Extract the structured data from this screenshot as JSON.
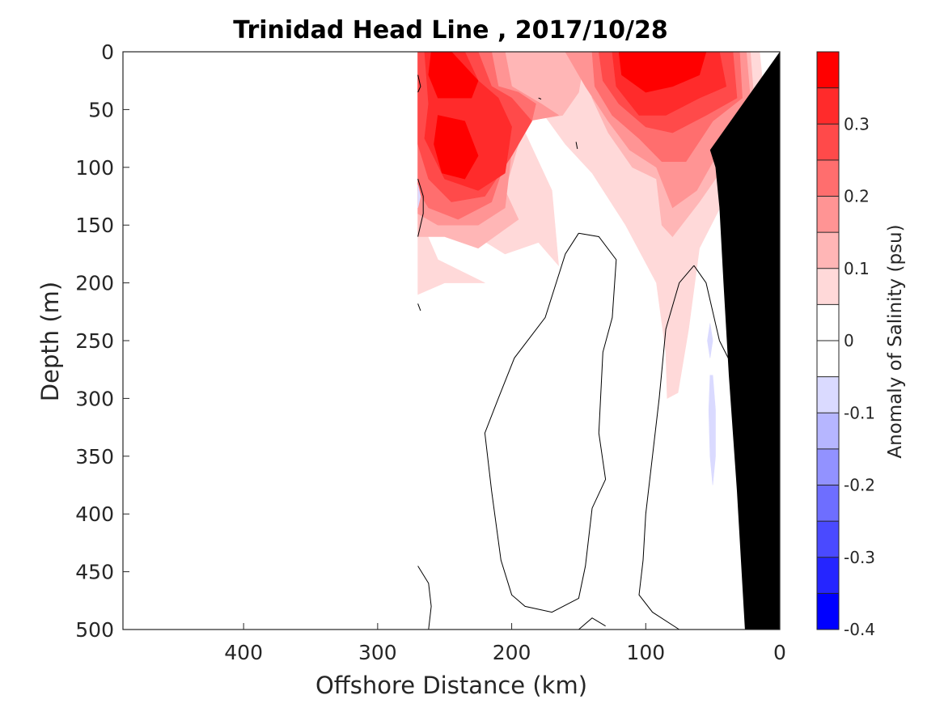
{
  "chart_data": {
    "type": "heatmap",
    "title": "Trinidad Head Line , 2017/10/28",
    "xlabel": "Offshore Distance (km)",
    "ylabel": "Depth (m)",
    "colorbar_label": "Anomaly of Salinity (psu)",
    "xlim": [
      490,
      0
    ],
    "ylim": [
      500,
      0
    ],
    "x_ticks": [
      {
        "value": 400,
        "label": "400"
      },
      {
        "value": 300,
        "label": "300"
      },
      {
        "value": 200,
        "label": "200"
      },
      {
        "value": 100,
        "label": "100"
      },
      {
        "value": 0,
        "label": "0"
      }
    ],
    "y_ticks": [
      {
        "value": 0,
        "label": "0"
      },
      {
        "value": 50,
        "label": "50"
      },
      {
        "value": 100,
        "label": "100"
      },
      {
        "value": 150,
        "label": "150"
      },
      {
        "value": 200,
        "label": "200"
      },
      {
        "value": 250,
        "label": "250"
      },
      {
        "value": 300,
        "label": "300"
      },
      {
        "value": 350,
        "label": "350"
      },
      {
        "value": 400,
        "label": "400"
      },
      {
        "value": 450,
        "label": "450"
      },
      {
        "value": 500,
        "label": "500"
      }
    ],
    "colorbar": {
      "min": -0.4,
      "max": 0.4,
      "ticks": [
        {
          "value": 0.3,
          "label": "0.3"
        },
        {
          "value": 0.2,
          "label": "0.2"
        },
        {
          "value": 0.1,
          "label": "0.1"
        },
        {
          "value": 0,
          "label": "0"
        },
        {
          "value": -0.1,
          "label": "-0.1"
        },
        {
          "value": -0.2,
          "label": "-0.2"
        },
        {
          "value": -0.3,
          "label": "-0.3"
        },
        {
          "value": -0.4,
          "label": "-0.4"
        }
      ],
      "levels": [
        {
          "from": 0.35,
          "to": 0.4,
          "color": "#ff0000"
        },
        {
          "from": 0.3,
          "to": 0.35,
          "color": "#ff2b2b"
        },
        {
          "from": 0.25,
          "to": 0.3,
          "color": "#ff4a4a"
        },
        {
          "from": 0.2,
          "to": 0.25,
          "color": "#ff6e6e"
        },
        {
          "from": 0.15,
          "to": 0.2,
          "color": "#ff9494"
        },
        {
          "from": 0.1,
          "to": 0.15,
          "color": "#ffb6b6"
        },
        {
          "from": 0.05,
          "to": 0.1,
          "color": "#ffd9d9"
        },
        {
          "from": 0.0,
          "to": 0.05,
          "color": "#ffffff"
        },
        {
          "from": -0.05,
          "to": 0.0,
          "color": "#ffffff"
        },
        {
          "from": -0.1,
          "to": -0.05,
          "color": "#dadaff"
        },
        {
          "from": -0.15,
          "to": -0.1,
          "color": "#b6b6ff"
        },
        {
          "from": -0.2,
          "to": -0.15,
          "color": "#9292ff"
        },
        {
          "from": -0.25,
          "to": -0.2,
          "color": "#6e6eff"
        },
        {
          "from": -0.3,
          "to": -0.25,
          "color": "#4a4aff"
        },
        {
          "from": -0.35,
          "to": -0.3,
          "color": "#2525ff"
        },
        {
          "from": -0.4,
          "to": -0.35,
          "color": "#0000ff"
        }
      ]
    },
    "filled_regions": [
      {
        "anomaly": 0.075,
        "color": "#ffd9d9",
        "points": [
          [
            270,
            0
          ],
          [
            15,
            0
          ],
          [
            10,
            60
          ],
          [
            38,
            120
          ],
          [
            60,
            170
          ],
          [
            68,
            240
          ],
          [
            76,
            295
          ],
          [
            84,
            300
          ],
          [
            85,
            260
          ],
          [
            92,
            200
          ],
          [
            115,
            150
          ],
          [
            140,
            105
          ],
          [
            160,
            80
          ],
          [
            185,
            40
          ],
          [
            210,
            10
          ],
          [
            230,
            35
          ],
          [
            255,
            60
          ],
          [
            270,
            80
          ]
        ]
      },
      {
        "anomaly": 0.075,
        "color": "#ffd9d9",
        "points": [
          [
            270,
            80
          ],
          [
            240,
            150
          ],
          [
            205,
            175
          ],
          [
            180,
            165
          ],
          [
            165,
            185
          ],
          [
            170,
            120
          ],
          [
            190,
            70
          ],
          [
            170,
            30
          ],
          [
            190,
            10
          ],
          [
            270,
            0
          ]
        ]
      },
      {
        "anomaly": 0.075,
        "color": "#ffd9d9",
        "points": [
          [
            270,
            140
          ],
          [
            255,
            180
          ],
          [
            220,
            200
          ],
          [
            250,
            200
          ],
          [
            270,
            210
          ]
        ]
      },
      {
        "anomaly": 0.125,
        "color": "#ffb6b6",
        "points": [
          [
            270,
            0
          ],
          [
            145,
            0
          ],
          [
            150,
            35
          ],
          [
            162,
            55
          ],
          [
            190,
            60
          ],
          [
            205,
            120
          ],
          [
            195,
            145
          ],
          [
            225,
            170
          ],
          [
            250,
            160
          ],
          [
            270,
            160
          ]
        ]
      },
      {
        "anomaly": 0.125,
        "color": "#ffb6b6",
        "points": [
          [
            145,
            0
          ],
          [
            22,
            0
          ],
          [
            18,
            60
          ],
          [
            42,
            100
          ],
          [
            60,
            130
          ],
          [
            80,
            160
          ],
          [
            88,
            150
          ],
          [
            92,
            110
          ],
          [
            110,
            100
          ],
          [
            128,
            70
          ],
          [
            140,
            40
          ]
        ]
      },
      {
        "anomaly": 0.175,
        "color": "#ff9494",
        "points": [
          [
            270,
            0
          ],
          [
            205,
            0
          ],
          [
            200,
            30
          ],
          [
            178,
            45
          ],
          [
            165,
            55
          ],
          [
            188,
            60
          ],
          [
            200,
            85
          ],
          [
            205,
            135
          ],
          [
            225,
            150
          ],
          [
            255,
            150
          ],
          [
            270,
            140
          ]
        ]
      },
      {
        "anomaly": 0.175,
        "color": "#ff9494",
        "points": [
          [
            160,
            0
          ],
          [
            25,
            0
          ],
          [
            22,
            40
          ],
          [
            45,
            85
          ],
          [
            62,
            120
          ],
          [
            80,
            135
          ],
          [
            92,
            100
          ],
          [
            112,
            85
          ],
          [
            128,
            60
          ],
          [
            145,
            30
          ]
        ]
      },
      {
        "anomaly": 0.225,
        "color": "#ff6e6e",
        "points": [
          [
            270,
            0
          ],
          [
            215,
            0
          ],
          [
            210,
            30
          ],
          [
            195,
            35
          ],
          [
            182,
            45
          ],
          [
            185,
            60
          ],
          [
            205,
            95
          ],
          [
            215,
            130
          ],
          [
            240,
            145
          ],
          [
            262,
            135
          ],
          [
            270,
            120
          ]
        ]
      },
      {
        "anomaly": 0.225,
        "color": "#ff6e6e",
        "points": [
          [
            140,
            0
          ],
          [
            30,
            0
          ],
          [
            28,
            40
          ],
          [
            50,
            60
          ],
          [
            70,
            95
          ],
          [
            88,
            95
          ],
          [
            105,
            75
          ],
          [
            125,
            55
          ],
          [
            138,
            30
          ]
        ]
      },
      {
        "anomaly": 0.275,
        "color": "#ff4a4a",
        "points": [
          [
            270,
            0
          ],
          [
            225,
            0
          ],
          [
            215,
            30
          ],
          [
            200,
            40
          ],
          [
            185,
            60
          ],
          [
            200,
            90
          ],
          [
            220,
            125
          ],
          [
            245,
            130
          ],
          [
            262,
            110
          ],
          [
            270,
            80
          ]
        ]
      },
      {
        "anomaly": 0.275,
        "color": "#ff4a4a",
        "points": [
          [
            135,
            0
          ],
          [
            35,
            0
          ],
          [
            32,
            40
          ],
          [
            55,
            55
          ],
          [
            80,
            70
          ],
          [
            100,
            65
          ],
          [
            120,
            45
          ],
          [
            132,
            25
          ]
        ]
      },
      {
        "anomaly": 0.325,
        "color": "#ff2b2b",
        "points": [
          [
            265,
            0
          ],
          [
            235,
            0
          ],
          [
            225,
            25
          ],
          [
            210,
            40
          ],
          [
            200,
            65
          ],
          [
            205,
            105
          ],
          [
            225,
            120
          ],
          [
            250,
            110
          ],
          [
            265,
            75
          ],
          [
            262,
            45
          ]
        ]
      },
      {
        "anomaly": 0.325,
        "color": "#ff2b2b",
        "points": [
          [
            125,
            0
          ],
          [
            45,
            0
          ],
          [
            40,
            30
          ],
          [
            60,
            40
          ],
          [
            85,
            55
          ],
          [
            105,
            55
          ],
          [
            122,
            30
          ]
        ]
      },
      {
        "anomaly": 0.375,
        "color": "#ff0000",
        "points": [
          [
            260,
            0
          ],
          [
            245,
            0
          ],
          [
            225,
            25
          ],
          [
            230,
            40
          ],
          [
            255,
            40
          ],
          [
            262,
            20
          ]
        ]
      },
      {
        "anomaly": 0.375,
        "color": "#ff0000",
        "points": [
          [
            120,
            0
          ],
          [
            55,
            0
          ],
          [
            60,
            20
          ],
          [
            80,
            30
          ],
          [
            100,
            35
          ],
          [
            118,
            20
          ]
        ]
      },
      {
        "anomaly": 0.375,
        "color": "#ff0000",
        "points": [
          [
            255,
            55
          ],
          [
            235,
            60
          ],
          [
            225,
            90
          ],
          [
            235,
            110
          ],
          [
            252,
            105
          ],
          [
            258,
            80
          ]
        ]
      },
      {
        "anomaly": -0.075,
        "color": "#dadaff",
        "points": [
          [
            270,
            115
          ],
          [
            268,
            125
          ],
          [
            270,
            135
          ]
        ]
      },
      {
        "anomaly": -0.075,
        "color": "#dadaff",
        "points": [
          [
            52,
            235
          ],
          [
            50,
            250
          ],
          [
            52,
            265
          ],
          [
            54,
            250
          ]
        ]
      },
      {
        "anomaly": -0.075,
        "color": "#dadaff",
        "points": [
          [
            50,
            280
          ],
          [
            48,
            310
          ],
          [
            48,
            350
          ],
          [
            50,
            375
          ],
          [
            52,
            350
          ],
          [
            53,
            310
          ],
          [
            52,
            280
          ]
        ]
      }
    ],
    "contour_lines": [
      {
        "anomaly": 0,
        "points": [
          [
            150,
            157
          ],
          [
            160,
            175
          ],
          [
            175,
            230
          ],
          [
            198,
            265
          ],
          [
            210,
            300
          ],
          [
            220,
            330
          ],
          [
            215,
            380
          ],
          [
            208,
            440
          ],
          [
            200,
            470
          ],
          [
            190,
            480
          ],
          [
            170,
            485
          ],
          [
            150,
            473
          ],
          [
            145,
            445
          ],
          [
            140,
            395
          ],
          [
            130,
            370
          ],
          [
            135,
            330
          ],
          [
            132,
            260
          ],
          [
            125,
            230
          ],
          [
            122,
            180
          ],
          [
            135,
            160
          ],
          [
            150,
            157
          ]
        ]
      },
      {
        "anomaly": 0,
        "points": [
          [
            64,
            185
          ],
          [
            75,
            200
          ],
          [
            85,
            240
          ],
          [
            90,
            300
          ],
          [
            95,
            350
          ],
          [
            100,
            400
          ],
          [
            102,
            440
          ],
          [
            105,
            470
          ],
          [
            95,
            485
          ],
          [
            75,
            500
          ]
        ]
      },
      {
        "anomaly": 0,
        "points": [
          [
            64,
            185
          ],
          [
            55,
            200
          ],
          [
            45,
            250
          ],
          [
            32,
            280
          ],
          [
            28,
            300
          ],
          [
            20,
            270
          ],
          [
            15,
            260
          ]
        ]
      },
      {
        "anomaly": 0,
        "points": [
          [
            270,
            445
          ],
          [
            262,
            460
          ],
          [
            260,
            480
          ],
          [
            262,
            500
          ]
        ]
      },
      {
        "anomaly": 0,
        "points": [
          [
            150,
            500
          ],
          [
            140,
            490
          ],
          [
            130,
            497
          ]
        ]
      },
      {
        "anomaly": 0,
        "points": [
          [
            270,
            20
          ],
          [
            268,
            30
          ],
          [
            270,
            35
          ]
        ]
      },
      {
        "anomaly": 0,
        "points": [
          [
            270,
            110
          ],
          [
            266,
            125
          ],
          [
            266,
            140
          ],
          [
            270,
            160
          ]
        ]
      },
      {
        "anomaly": 0,
        "points": [
          [
            270,
            218
          ],
          [
            268,
            224
          ]
        ]
      },
      {
        "anomaly": 0,
        "points": [
          [
            180,
            40
          ],
          [
            178,
            41
          ]
        ]
      },
      {
        "anomaly": 0,
        "points": [
          [
            152,
            78
          ],
          [
            151,
            84
          ]
        ]
      }
    ],
    "bathymetry_mask": {
      "color": "#000000",
      "points": [
        [
          0,
          0
        ],
        [
          0,
          500
        ],
        [
          26,
          500
        ],
        [
          32,
          380
        ],
        [
          38,
          280
        ],
        [
          42,
          200
        ],
        [
          45,
          135
        ],
        [
          48,
          100
        ],
        [
          52,
          85
        ]
      ]
    }
  }
}
